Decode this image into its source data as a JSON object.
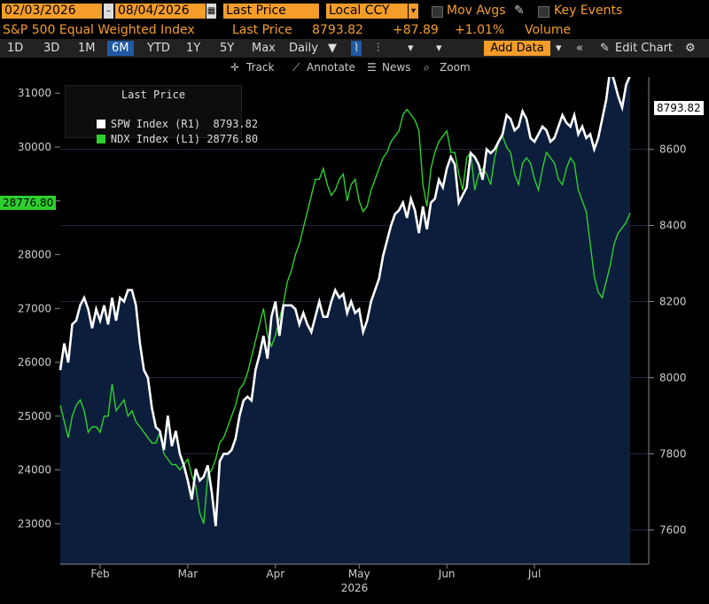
{
  "toolbar": {
    "start_date": "02/03/2026",
    "end_date": "08/04/2026",
    "price_field": "Last Price",
    "currency": "Local CCY",
    "mov_avgs": "Mov Avgs",
    "key_events": "Key Events"
  },
  "header": {
    "security_name": "S&P 500 Equal Weighted Index",
    "price_label": "Last Price",
    "price": "8793.82",
    "change": "+87.89",
    "pct_change": "+1.01%",
    "volume_label": "Volume"
  },
  "periods": [
    "1D",
    "3D",
    "1M",
    "6M",
    "YTD",
    "1Y",
    "5Y",
    "Max"
  ],
  "selected_period": "6M",
  "frequency": "Daily",
  "add_data_label": "Add Data",
  "edit_chart_label": "Edit Chart",
  "chart_tools": {
    "track": "Track",
    "annotate": "Annotate",
    "news": "News",
    "zoom": "Zoom"
  },
  "colors": {
    "spw": "#ffffff",
    "ndx": "#2ed02e",
    "area_fill": "#0c1e3c",
    "accent": "#f59d2a"
  },
  "chart_data": {
    "type": "line",
    "legend": {
      "title": "Last Price",
      "items": [
        {
          "name": "SPW Index",
          "axis": "(R1)",
          "value": "8793.82"
        },
        {
          "name": "NDX Index",
          "axis": "(L1)",
          "value": "28776.80"
        }
      ]
    },
    "x_ticks": [
      "Feb",
      "Mar",
      "Apr",
      "May",
      "Jun",
      "Jul"
    ],
    "xlabel": "2026",
    "left_axis": {
      "ticks": [
        23000,
        24000,
        25000,
        26000,
        27000,
        28000,
        29000,
        30000,
        31000
      ],
      "range": [
        22250,
        31300
      ]
    },
    "right_axis": {
      "ticks": [
        7600,
        7800,
        8000,
        8200,
        8400,
        8600
      ],
      "range": [
        7510,
        8790
      ]
    },
    "last_value_labels": {
      "spw": "8793.82",
      "ndx": "28776.80"
    },
    "series": [
      {
        "name": "SPW Index",
        "axis": "right",
        "style": "area",
        "values": [
          8020,
          8090,
          8040,
          8140,
          8150,
          8190,
          8210,
          8180,
          8130,
          8180,
          8150,
          8190,
          8140,
          8210,
          8150,
          8210,
          8200,
          8230,
          8230,
          8190,
          8090,
          8020,
          8000,
          7920,
          7870,
          7860,
          7810,
          7900,
          7820,
          7860,
          7800,
          7770,
          7730,
          7680,
          7760,
          7730,
          7740,
          7770,
          7700,
          7610,
          7780,
          7800,
          7800,
          7810,
          7840,
          7900,
          7940,
          7950,
          7940,
          8020,
          8060,
          8110,
          8050,
          8160,
          8200,
          8110,
          8190,
          8190,
          8190,
          8180,
          8140,
          8170,
          8140,
          8120,
          8160,
          8200,
          8160,
          8160,
          8200,
          8230,
          8210,
          8220,
          8170,
          8200,
          8170,
          8180,
          8120,
          8150,
          8200,
          8230,
          8260,
          8320,
          8360,
          8400,
          8430,
          8440,
          8460,
          8420,
          8470,
          8440,
          8380,
          8450,
          8390,
          8460,
          8470,
          8520,
          8500,
          8550,
          8580,
          8560,
          8460,
          8480,
          8500,
          8590,
          8580,
          8560,
          8520,
          8600,
          8590,
          8600,
          8620,
          8640,
          8690,
          8680,
          8650,
          8660,
          8700,
          8680,
          8630,
          8620,
          8640,
          8660,
          8650,
          8620,
          8630,
          8660,
          8690,
          8670,
          8660,
          8690,
          8640,
          8660,
          8630,
          8640,
          8600,
          8630,
          8680,
          8730,
          8810,
          8780,
          8740,
          8710,
          8770,
          8794
        ]
      },
      {
        "name": "NDX Index",
        "axis": "left",
        "style": "line",
        "values": [
          25200,
          24900,
          24600,
          25000,
          25200,
          25300,
          25100,
          24700,
          24800,
          24800,
          24700,
          25000,
          25000,
          25600,
          25100,
          25200,
          25300,
          25000,
          25100,
          24900,
          24800,
          24700,
          24600,
          24500,
          24500,
          24700,
          24300,
          24200,
          24100,
          24100,
          24000,
          24100,
          24200,
          23900,
          23700,
          23200,
          23000,
          23900,
          24000,
          24200,
          24500,
          24600,
          24800,
          25000,
          25200,
          25500,
          25600,
          25800,
          26100,
          26400,
          26700,
          27000,
          26500,
          26300,
          26500,
          26800,
          27100,
          27500,
          27700,
          28000,
          28200,
          28500,
          28800,
          29100,
          29400,
          29400,
          29600,
          29300,
          29100,
          29200,
          29400,
          29500,
          29000,
          29300,
          29400,
          29000,
          28800,
          28900,
          29200,
          29400,
          29600,
          29800,
          29900,
          30100,
          30200,
          30300,
          30600,
          30700,
          30600,
          30500,
          30300,
          29300,
          28900,
          29600,
          29900,
          30100,
          30200,
          30300,
          29900,
          29900,
          29500,
          29200,
          29800,
          29900,
          29200,
          29500,
          29600,
          29500,
          29300,
          29800,
          30100,
          30200,
          30000,
          29900,
          29500,
          29300,
          29700,
          29800,
          29700,
          29400,
          29200,
          29600,
          29900,
          29800,
          29700,
          29400,
          29300,
          29600,
          29800,
          29700,
          29200,
          29000,
          28800,
          28200,
          27600,
          27300,
          27200,
          27500,
          27800,
          28200,
          28400,
          28500,
          28600,
          28777
        ]
      }
    ]
  }
}
